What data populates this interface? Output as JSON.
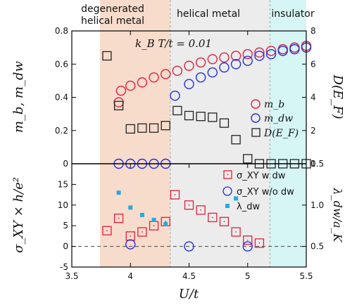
{
  "chart_data": [
    {
      "type": "scatter",
      "panel": "top",
      "annotation": "k_B T/t = 0.01",
      "xlabel": "U/t",
      "xlim": [
        3.5,
        5.5
      ],
      "x_ticks": [
        "3.5",
        "4",
        "4.5",
        "5",
        "5.5"
      ],
      "ylabel_left": "m_b, m_dw",
      "ylim_left": [
        0,
        0.8
      ],
      "y_ticks_left": [
        "0",
        "0.2",
        "0.4",
        "0.6",
        "0.8"
      ],
      "ylabel_right": "D(E_F)",
      "ylim_right": [
        0,
        8
      ],
      "y_ticks_right": [
        "0",
        "2",
        "4",
        "6",
        "8"
      ],
      "regions": [
        {
          "label_line1": "degenerated",
          "label_line2": "helical metal",
          "x_range": [
            3.74,
            4.34
          ],
          "color": "#f8dccb"
        },
        {
          "label_line1": "helical metal",
          "label_line2": "",
          "x_range": [
            4.34,
            5.19
          ],
          "color": "#ececec"
        },
        {
          "label_line1": "insulator",
          "label_line2": "",
          "x_range": [
            5.19,
            5.5
          ],
          "color": "#d6f5f5"
        }
      ],
      "legend_position": "right",
      "series": [
        {
          "name": "m_b",
          "marker": "circle",
          "color": "#e0203c",
          "axis": "left",
          "points": [
            [
              3.9,
              0.37
            ],
            [
              3.92,
              0.44
            ],
            [
              4.0,
              0.47
            ],
            [
              4.1,
              0.49
            ],
            [
              4.2,
              0.52
            ],
            [
              4.3,
              0.54
            ],
            [
              4.4,
              0.56
            ],
            [
              4.5,
              0.59
            ],
            [
              4.6,
              0.61
            ],
            [
              4.7,
              0.63
            ],
            [
              4.8,
              0.64
            ],
            [
              4.9,
              0.65
            ],
            [
              5.0,
              0.66
            ],
            [
              5.1,
              0.67
            ],
            [
              5.2,
              0.68
            ],
            [
              5.3,
              0.69
            ],
            [
              5.4,
              0.7
            ],
            [
              5.5,
              0.71
            ]
          ]
        },
        {
          "name": "m_dw",
          "marker": "circle",
          "color": "#2030dd",
          "axis": "left",
          "points": [
            [
              3.9,
              0.0
            ],
            [
              4.0,
              0.0
            ],
            [
              4.1,
              0.0
            ],
            [
              4.2,
              0.0
            ],
            [
              4.3,
              0.0
            ],
            [
              4.38,
              0.41
            ],
            [
              4.5,
              0.48
            ],
            [
              4.6,
              0.52
            ],
            [
              4.7,
              0.55
            ],
            [
              4.8,
              0.58
            ],
            [
              4.9,
              0.6
            ],
            [
              5.0,
              0.62
            ],
            [
              5.1,
              0.65
            ],
            [
              5.2,
              0.66
            ],
            [
              5.3,
              0.68
            ],
            [
              5.4,
              0.69
            ],
            [
              5.5,
              0.7
            ]
          ]
        },
        {
          "name": "D(E_F)",
          "marker": "square",
          "color": "#222222",
          "axis": "right",
          "points": [
            [
              3.8,
              6.5
            ],
            [
              3.9,
              3.5
            ],
            [
              4.0,
              2.1
            ],
            [
              4.1,
              2.15
            ],
            [
              4.2,
              2.15
            ],
            [
              4.3,
              2.3
            ],
            [
              4.4,
              3.2
            ],
            [
              4.5,
              2.9
            ],
            [
              4.6,
              2.85
            ],
            [
              4.7,
              2.8
            ],
            [
              4.8,
              2.45
            ],
            [
              4.9,
              1.45
            ],
            [
              5.0,
              0.3
            ],
            [
              5.1,
              0.0
            ],
            [
              5.2,
              0.0
            ],
            [
              5.3,
              0.0
            ],
            [
              5.4,
              0.0
            ],
            [
              5.5,
              0.0
            ]
          ]
        }
      ]
    },
    {
      "type": "scatter",
      "panel": "bottom",
      "xlabel": "U/t",
      "xlim": [
        3.5,
        5.5
      ],
      "x_ticks": [
        "3.5",
        "4",
        "4.5",
        "5",
        "5.5"
      ],
      "ylabel_left": "σ_XY × h/e²",
      "ylim_left": [
        -5,
        20
      ],
      "y_ticks_left": [
        "-5",
        "0",
        "5",
        "10",
        "15"
      ],
      "ylabel_right": "λ_dw/a_K",
      "ylim_right": [
        0.25,
        1.5
      ],
      "y_ticks_right": [
        "0.5",
        "1.0",
        "1.5"
      ],
      "hline_y": 0,
      "legend_position": "right",
      "series": [
        {
          "name": "σ_XY w dw",
          "marker": "square-dot",
          "color": "#e0203c",
          "axis": "left",
          "points": [
            [
              3.8,
              3.8
            ],
            [
              3.9,
              6.8
            ],
            [
              4.0,
              2.5
            ],
            [
              4.1,
              3.5
            ],
            [
              4.2,
              5.0
            ],
            [
              4.3,
              6.0
            ],
            [
              4.38,
              12.5
            ],
            [
              4.5,
              10.0
            ],
            [
              4.6,
              8.8
            ],
            [
              4.7,
              7.0
            ],
            [
              4.8,
              6.0
            ],
            [
              4.9,
              3.5
            ],
            [
              5.0,
              1.5
            ],
            [
              5.1,
              0.8
            ]
          ]
        },
        {
          "name": "σ_XY w/o dw",
          "marker": "circle",
          "color": "#2030dd",
          "axis": "left",
          "points": [
            [
              4.0,
              0.5
            ],
            [
              4.5,
              0.0
            ],
            [
              5.0,
              0.0
            ]
          ]
        },
        {
          "name": "λ_dw",
          "marker": "filled-square",
          "color": "#29a8e0",
          "axis": "right",
          "points": [
            [
              3.9,
              1.15
            ],
            [
              4.0,
              0.97
            ],
            [
              4.1,
              0.88
            ],
            [
              4.2,
              0.82
            ],
            [
              4.3,
              0.77
            ],
            [
              4.9,
              1.08
            ]
          ]
        }
      ]
    }
  ]
}
